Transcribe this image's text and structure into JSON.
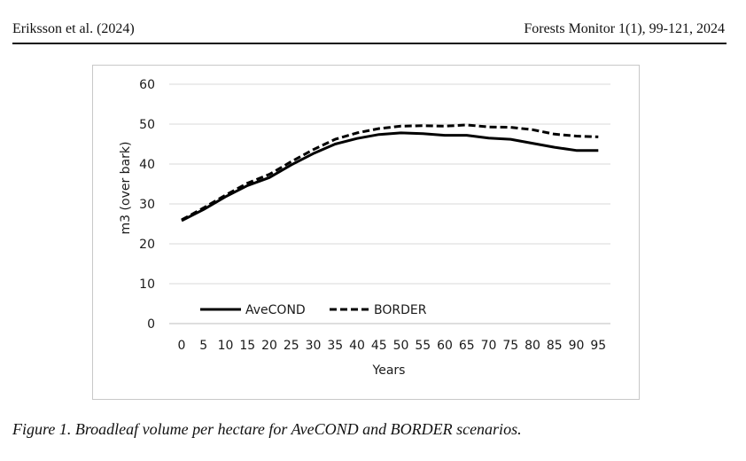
{
  "header": {
    "author": "Eriksson et al. (2024)",
    "journal": "Forests Monitor 1(1), 99-121, 2024"
  },
  "caption": "Figure 1. Broadleaf volume per hectare for AveCOND and BORDER scenarios.",
  "chart_data": {
    "type": "line",
    "xlabel": "Years",
    "ylabel": "m3 (over bark)",
    "x": [
      0,
      5,
      10,
      15,
      20,
      25,
      30,
      35,
      40,
      45,
      50,
      55,
      60,
      65,
      70,
      75,
      80,
      85,
      90,
      95
    ],
    "ylim": [
      0,
      60
    ],
    "yticks": [
      0,
      10,
      20,
      30,
      40,
      50,
      60
    ],
    "grid": true,
    "legend_position": "bottom-left inside",
    "series": [
      {
        "name": "AveCOND",
        "style": "solid",
        "color": "#000000",
        "values": [
          25.8,
          28.6,
          31.8,
          34.6,
          36.6,
          39.8,
          42.6,
          45.0,
          46.4,
          47.4,
          47.8,
          47.6,
          47.2,
          47.2,
          46.5,
          46.2,
          45.2,
          44.2,
          43.4,
          43.4
        ]
      },
      {
        "name": "BORDER",
        "style": "dashed",
        "color": "#000000",
        "values": [
          26.0,
          29.0,
          32.2,
          35.2,
          37.4,
          40.6,
          43.6,
          46.2,
          47.8,
          48.9,
          49.5,
          49.6,
          49.5,
          49.8,
          49.3,
          49.2,
          48.6,
          47.5,
          47.0,
          46.8
        ]
      }
    ]
  }
}
